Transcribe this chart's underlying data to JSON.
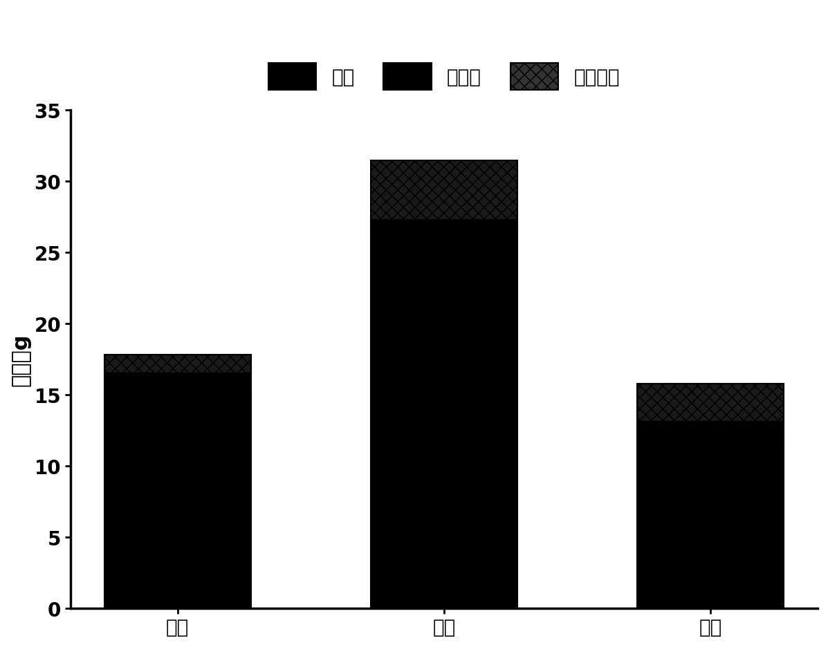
{
  "categories": [
    "硫酸",
    "盐酸",
    "磷酸"
  ],
  "xylose": [
    15.0,
    26.5,
    12.0
  ],
  "glucose": [
    1.5,
    0.8,
    1.1
  ],
  "arabinose": [
    1.3,
    4.2,
    2.7
  ],
  "legend_labels": [
    "木糖",
    "葡萄糖",
    "阿拉伯糖"
  ],
  "ylabel": "质量／g",
  "ylim": [
    0,
    35
  ],
  "yticks": [
    0,
    5,
    10,
    15,
    20,
    25,
    30,
    35
  ],
  "bar_width": 0.55,
  "color_xylose": "#000000",
  "color_glucose": "#000000",
  "color_arabinose": "#111111",
  "background_color": "#ffffff",
  "axis_fontsize": 22,
  "tick_fontsize": 20,
  "legend_fontsize": 20
}
